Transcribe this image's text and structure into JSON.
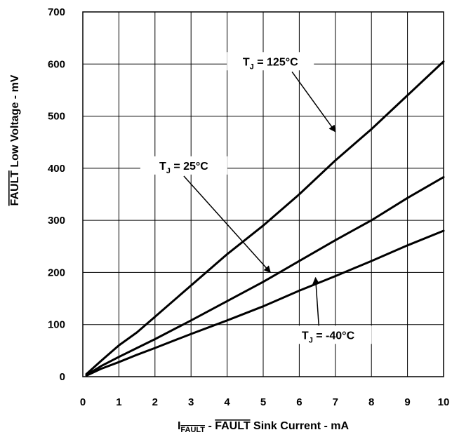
{
  "chart_data": {
    "type": "line",
    "xlabel": {
      "prefix": "I",
      "prefix_sub": "FAULT",
      "overline_part": "FAULT",
      "rest": " Sink Current - mA",
      "separator": " - "
    },
    "ylabel": {
      "overline_part": "FAULT",
      "rest": " Low Voltage - mV"
    },
    "xlim": [
      0,
      10
    ],
    "ylim": [
      0,
      700
    ],
    "x_ticks": [
      "0",
      "1",
      "2",
      "3",
      "4",
      "5",
      "6",
      "7",
      "8",
      "9",
      "10"
    ],
    "y_ticks": [
      "0",
      "100",
      "200",
      "300",
      "400",
      "500",
      "600",
      "700"
    ],
    "grid": true,
    "series": [
      {
        "name": "T_J = 125°C",
        "x": [
          0.1,
          0.5,
          1.0,
          1.5,
          2.0,
          3.0,
          4.0,
          5.0,
          6.0,
          7.0,
          8.0,
          9.0,
          10.0
        ],
        "y": [
          5,
          30,
          60,
          85,
          115,
          175,
          235,
          290,
          350,
          415,
          475,
          540,
          605
        ]
      },
      {
        "name": "T_J = 25°C",
        "x": [
          0.1,
          0.5,
          1.0,
          1.5,
          2.0,
          3.0,
          4.0,
          5.0,
          6.0,
          7.0,
          8.0,
          9.0,
          10.0
        ],
        "y": [
          3,
          20,
          38,
          55,
          72,
          108,
          145,
          182,
          222,
          262,
          300,
          343,
          383
        ]
      },
      {
        "name": "T_J = -40°C",
        "x": [
          0.1,
          0.5,
          1.0,
          1.5,
          2.0,
          3.0,
          4.0,
          5.0,
          6.0,
          7.0,
          8.0,
          9.0,
          10.0
        ],
        "y": [
          2,
          15,
          28,
          42,
          55,
          82,
          108,
          135,
          165,
          193,
          222,
          252,
          280
        ]
      }
    ],
    "annotations": [
      {
        "label_main": "T",
        "label_sub": "J",
        "label_rest": " = 125°C",
        "text_at": [
          5.2,
          600
        ],
        "arrow_from": [
          5.8,
          585
        ],
        "arrow_to": [
          7.0,
          470
        ]
      },
      {
        "label_main": "T",
        "label_sub": "J",
        "label_rest": " = 25°C",
        "text_at": [
          2.8,
          400
        ],
        "arrow_from": [
          2.8,
          385
        ],
        "arrow_to": [
          5.2,
          200
        ]
      },
      {
        "label_main": "T",
        "label_sub": "J",
        "label_rest": " = -40°C",
        "text_at": [
          6.8,
          75
        ],
        "arrow_from": [
          6.55,
          90
        ],
        "arrow_to": [
          6.45,
          190
        ]
      }
    ]
  }
}
